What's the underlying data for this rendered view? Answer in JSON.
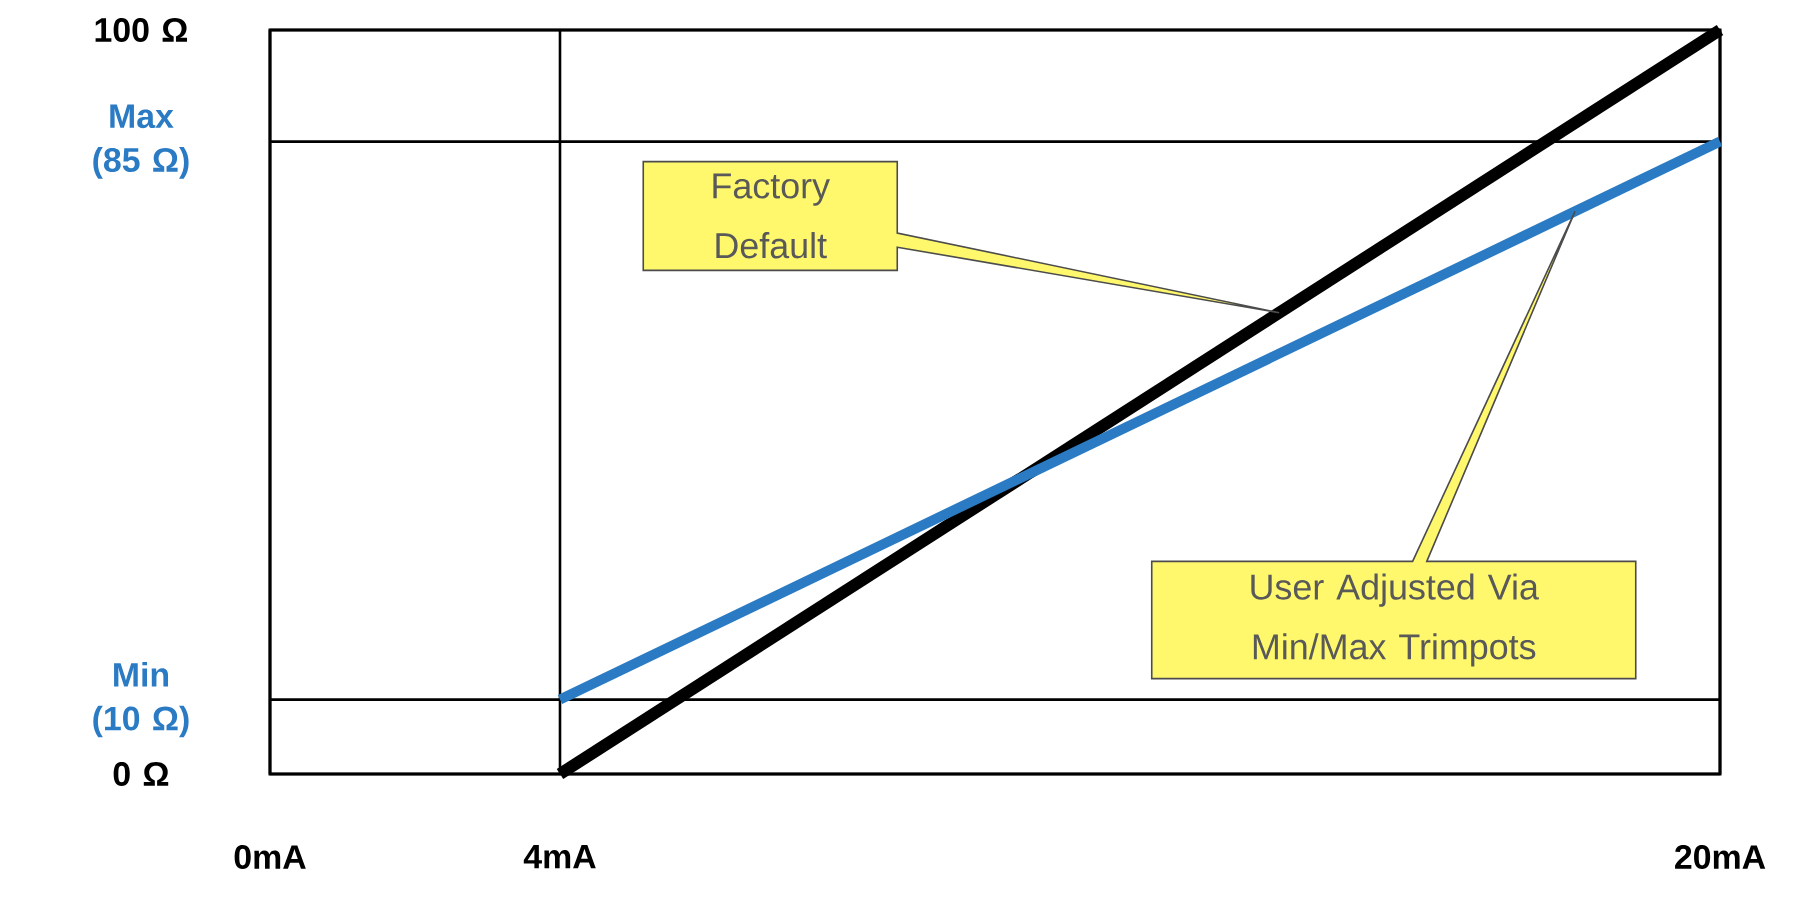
{
  "chart_data": {
    "type": "line",
    "x": [
      4,
      20
    ],
    "series": [
      {
        "color": "#000000",
        "values": [
          0,
          100
        ]
      },
      {
        "color": "#2a7bc4",
        "values": [
          10,
          85
        ]
      }
    ],
    "xlim": [
      0,
      20
    ],
    "ylim": [
      0,
      100
    ],
    "xticks": [
      {
        "value": 0,
        "label": "0mA"
      },
      {
        "value": 4,
        "label": "4mA"
      },
      {
        "value": 20,
        "label": "20mA"
      }
    ],
    "yticks": [
      {
        "value": 0,
        "label": "0 Ω"
      },
      {
        "value": 10,
        "label": "Min (10 Ω)"
      },
      {
        "value": 85,
        "label": "Max (85 Ω)"
      },
      {
        "value": 100,
        "label": "100 Ω"
      }
    ],
    "grid": true,
    "annotations": [
      "Factory Default",
      "User Adjusted Via Min/Max Trimpots"
    ]
  }
}
